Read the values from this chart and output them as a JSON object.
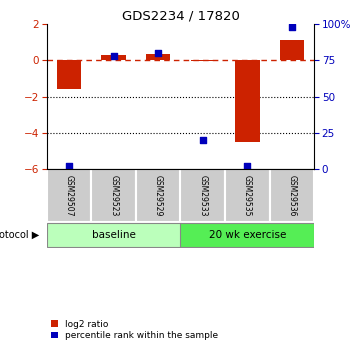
{
  "title": "GDS2234 / 17820",
  "samples": [
    "GSM29507",
    "GSM29523",
    "GSM29529",
    "GSM29533",
    "GSM29535",
    "GSM29536"
  ],
  "log2_ratio": [
    -1.6,
    0.3,
    0.35,
    -0.05,
    -4.5,
    1.1
  ],
  "percentile_rank": [
    2,
    78,
    80,
    20,
    2,
    98
  ],
  "ylim_left": [
    -6,
    2
  ],
  "ylim_right": [
    0,
    100
  ],
  "yticks_left": [
    -6,
    -4,
    -2,
    0,
    2
  ],
  "yticks_right": [
    0,
    25,
    50,
    75,
    100
  ],
  "bar_color": "#cc2200",
  "dot_color": "#0000bb",
  "baseline_color": "#bbffbb",
  "exercise_color": "#55ee55",
  "sample_box_color": "#cccccc",
  "n_baseline": 3,
  "n_exercise": 3
}
